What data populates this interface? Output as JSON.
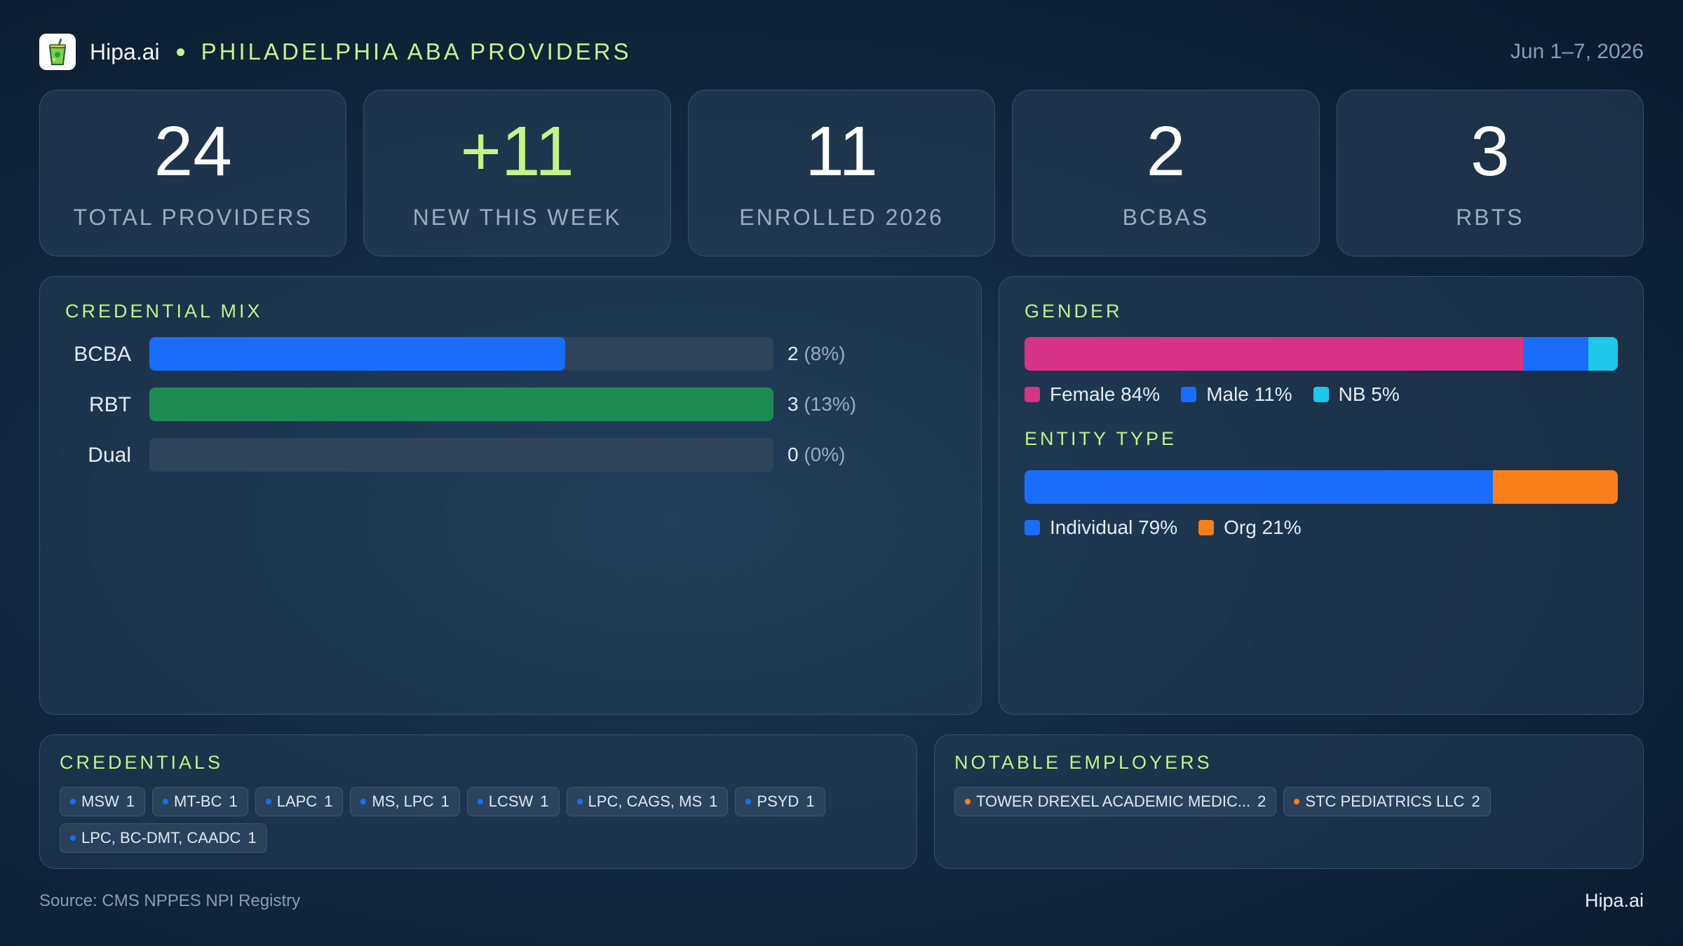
{
  "header": {
    "brand": "Hipa.ai",
    "title": "PHILADELPHIA ABA PROVIDERS",
    "date_range": "Jun 1–7, 2026",
    "logo_icon": "green-juice-cup-icon"
  },
  "kpis": [
    {
      "value": "24",
      "label": "TOTAL PROVIDERS"
    },
    {
      "value": "+11",
      "label": "NEW THIS WEEK"
    },
    {
      "value": "11",
      "label": "ENROLLED 2026"
    },
    {
      "value": "2",
      "label": "BCBAS"
    },
    {
      "value": "3",
      "label": "RBTS"
    }
  ],
  "credential_mix": {
    "title": "CREDENTIAL MIX",
    "rows": [
      {
        "label": "BCBA",
        "count": "2",
        "pct": "(8%)"
      },
      {
        "label": "RBT",
        "count": "3",
        "pct": "(13%)"
      },
      {
        "label": "Dual",
        "count": "0",
        "pct": "(0%)"
      }
    ]
  },
  "gender": {
    "title": "GENDER",
    "legend": [
      {
        "label": "Female 84%",
        "color": "#d63384"
      },
      {
        "label": "Male 11%",
        "color": "#1a6dfb"
      },
      {
        "label": "NB 5%",
        "color": "#1ec8e8"
      }
    ]
  },
  "entity_type": {
    "title": "ENTITY TYPE",
    "legend": [
      {
        "label": "Individual 79%",
        "color": "#1a6dfb"
      },
      {
        "label": "Org 21%",
        "color": "#f97f1a"
      }
    ]
  },
  "credentials": {
    "title": "CREDENTIALS",
    "items": [
      {
        "name": "MSW",
        "count": "1"
      },
      {
        "name": "MT-BC",
        "count": "1"
      },
      {
        "name": "LAPC",
        "count": "1"
      },
      {
        "name": "MS, LPC",
        "count": "1"
      },
      {
        "name": "LCSW",
        "count": "1"
      },
      {
        "name": "LPC, CAGS, MS",
        "count": "1"
      },
      {
        "name": "PSYD",
        "count": "1"
      },
      {
        "name": "LPC, BC-DMT, CAADC",
        "count": "1"
      }
    ]
  },
  "employers": {
    "title": "NOTABLE EMPLOYERS",
    "items": [
      {
        "name": "TOWER DREXEL ACADEMIC MEDIC...",
        "count": "2"
      },
      {
        "name": "STC PEDIATRICS LLC",
        "count": "2"
      }
    ]
  },
  "footer": {
    "source": "Source: CMS NPPES NPI Registry",
    "brand": "Hipa.ai"
  },
  "chart_data": [
    {
      "type": "bar",
      "title": "CREDENTIAL MIX",
      "categories": [
        "BCBA",
        "RBT",
        "Dual"
      ],
      "values": [
        2,
        3,
        0
      ],
      "percent_labels": [
        "8%",
        "13%",
        "0%"
      ],
      "xlim": [
        0,
        3
      ],
      "colors": [
        "#1a6dfb",
        "#1e8a53",
        "#2f4459"
      ]
    },
    {
      "type": "bar",
      "title": "GENDER",
      "stacked": true,
      "series": [
        {
          "name": "Female",
          "values": [
            84
          ],
          "color": "#d63384"
        },
        {
          "name": "Male",
          "values": [
            11
          ],
          "color": "#1a6dfb"
        },
        {
          "name": "NB",
          "values": [
            5
          ],
          "color": "#1ec8e8"
        }
      ]
    },
    {
      "type": "bar",
      "title": "ENTITY TYPE",
      "stacked": true,
      "series": [
        {
          "name": "Individual",
          "values": [
            79
          ],
          "color": "#1a6dfb"
        },
        {
          "name": "Org",
          "values": [
            21
          ],
          "color": "#f97f1a"
        }
      ]
    }
  ]
}
